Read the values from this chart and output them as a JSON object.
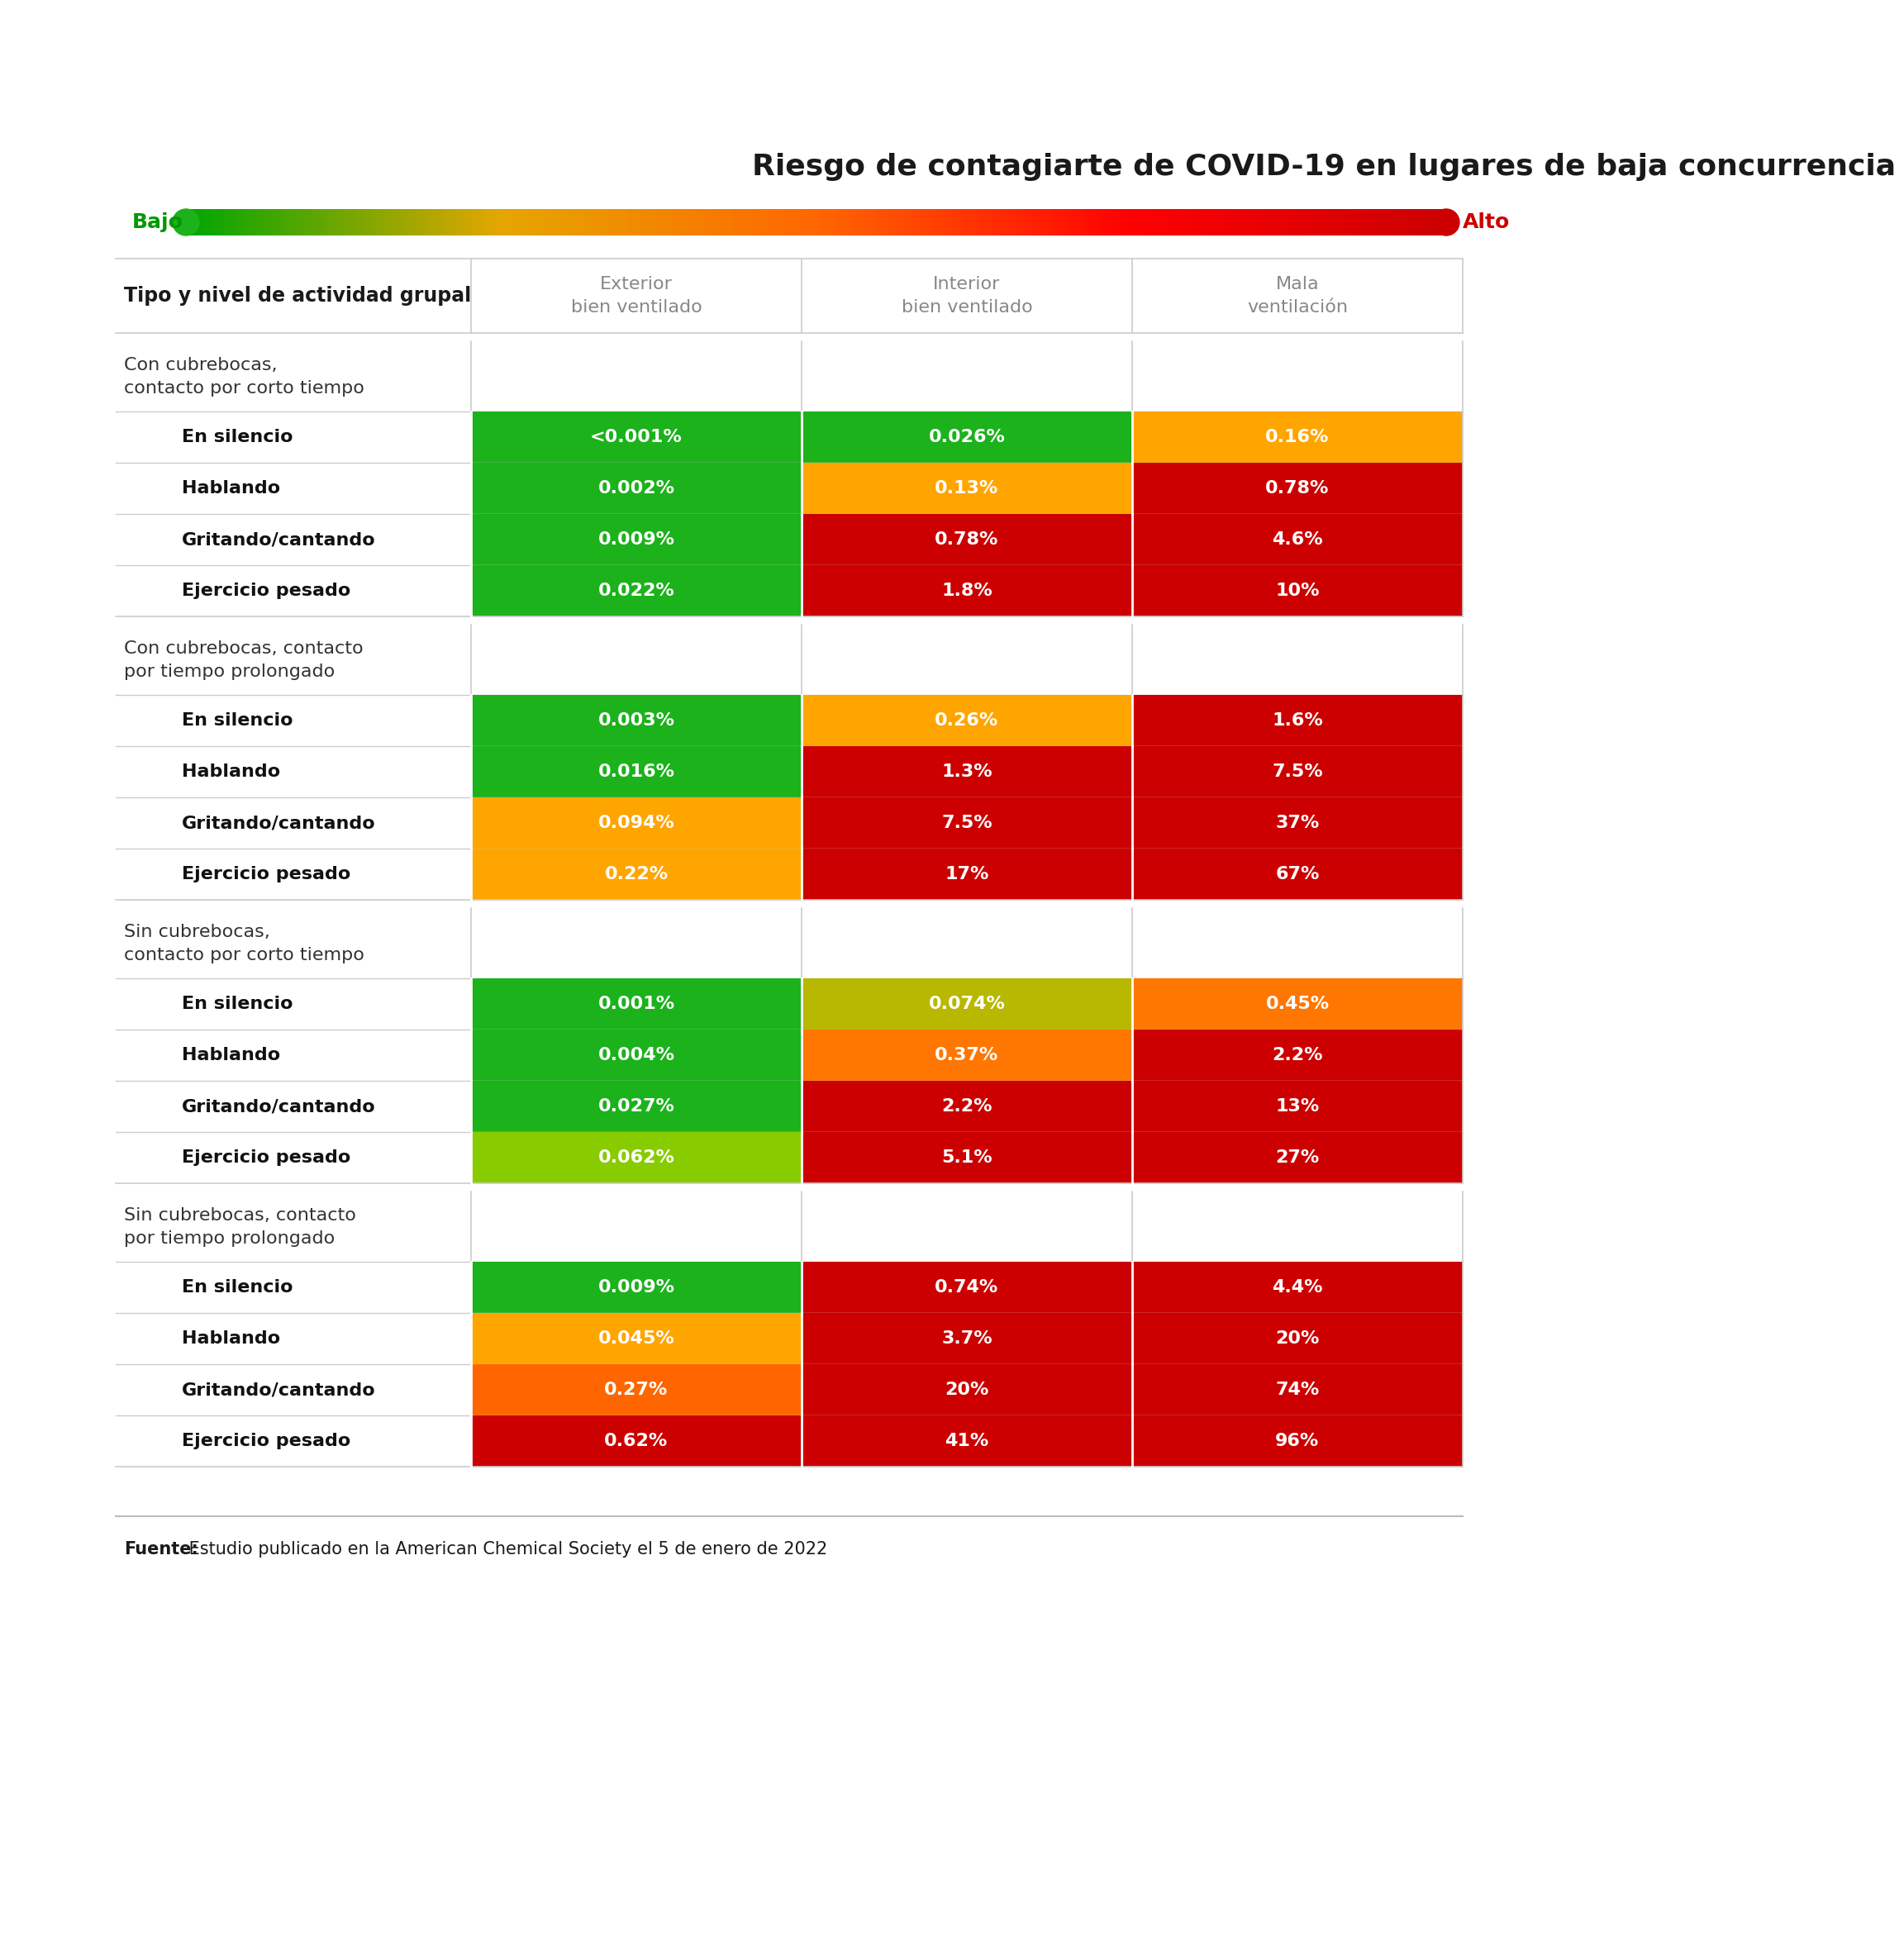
{
  "title": "Riesgo de contagiarte de COVID-19 en lugares de baja concurrencia",
  "gradient_label_low": "Bajo",
  "gradient_label_high": "Alto",
  "col_headers": [
    "Exterior\nbien ventilado",
    "Interior\nbien ventilado",
    "Mala\nventilación"
  ],
  "row_label_header": "Tipo y nivel de actividad grupal",
  "sections": [
    {
      "section_title": "Con cubrebocas,\ncontacto por corto tiempo",
      "rows": [
        {
          "label": "En silencio",
          "values": [
            "<0.001%",
            "0.026%",
            "0.16%"
          ],
          "colors": [
            "#1cb21c",
            "#1cb21c",
            "#ffa500"
          ]
        },
        {
          "label": "Hablando",
          "values": [
            "0.002%",
            "0.13%",
            "0.78%"
          ],
          "colors": [
            "#1cb21c",
            "#ffa500",
            "#cc0000"
          ]
        },
        {
          "label": "Gritando/cantando",
          "values": [
            "0.009%",
            "0.78%",
            "4.6%"
          ],
          "colors": [
            "#1cb21c",
            "#cc0000",
            "#cc0000"
          ]
        },
        {
          "label": "Ejercicio pesado",
          "values": [
            "0.022%",
            "1.8%",
            "10%"
          ],
          "colors": [
            "#1cb21c",
            "#cc0000",
            "#cc0000"
          ]
        }
      ]
    },
    {
      "section_title": "Con cubrebocas, contacto\npor tiempo prolongado",
      "rows": [
        {
          "label": "En silencio",
          "values": [
            "0.003%",
            "0.26%",
            "1.6%"
          ],
          "colors": [
            "#1cb21c",
            "#ffa500",
            "#cc0000"
          ]
        },
        {
          "label": "Hablando",
          "values": [
            "0.016%",
            "1.3%",
            "7.5%"
          ],
          "colors": [
            "#1cb21c",
            "#cc0000",
            "#cc0000"
          ]
        },
        {
          "label": "Gritando/cantando",
          "values": [
            "0.094%",
            "7.5%",
            "37%"
          ],
          "colors": [
            "#ffa500",
            "#cc0000",
            "#cc0000"
          ]
        },
        {
          "label": "Ejercicio pesado",
          "values": [
            "0.22%",
            "17%",
            "67%"
          ],
          "colors": [
            "#ffa500",
            "#cc0000",
            "#cc0000"
          ]
        }
      ]
    },
    {
      "section_title": "Sin cubrebocas,\ncontacto por corto tiempo",
      "rows": [
        {
          "label": "En silencio",
          "values": [
            "0.001%",
            "0.074%",
            "0.45%"
          ],
          "colors": [
            "#1cb21c",
            "#b8b800",
            "#ff7700"
          ]
        },
        {
          "label": "Hablando",
          "values": [
            "0.004%",
            "0.37%",
            "2.2%"
          ],
          "colors": [
            "#1cb21c",
            "#ff7700",
            "#cc0000"
          ]
        },
        {
          "label": "Gritando/cantando",
          "values": [
            "0.027%",
            "2.2%",
            "13%"
          ],
          "colors": [
            "#1cb21c",
            "#cc0000",
            "#cc0000"
          ]
        },
        {
          "label": "Ejercicio pesado",
          "values": [
            "0.062%",
            "5.1%",
            "27%"
          ],
          "colors": [
            "#88cc00",
            "#cc0000",
            "#cc0000"
          ]
        }
      ]
    },
    {
      "section_title": "Sin cubrebocas, contacto\npor tiempo prolongado",
      "rows": [
        {
          "label": "En silencio",
          "values": [
            "0.009%",
            "0.74%",
            "4.4%"
          ],
          "colors": [
            "#1cb21c",
            "#cc0000",
            "#cc0000"
          ]
        },
        {
          "label": "Hablando",
          "values": [
            "0.045%",
            "3.7%",
            "20%"
          ],
          "colors": [
            "#ffa500",
            "#cc0000",
            "#cc0000"
          ]
        },
        {
          "label": "Gritando/cantando",
          "values": [
            "0.27%",
            "20%",
            "74%"
          ],
          "colors": [
            "#ff6600",
            "#cc0000",
            "#cc0000"
          ]
        },
        {
          "label": "Ejercicio pesado",
          "values": [
            "0.62%",
            "41%",
            "96%"
          ],
          "colors": [
            "#cc0000",
            "#cc0000",
            "#cc0000"
          ]
        }
      ]
    }
  ],
  "footer_bold": "Fuente:",
  "footer_rest": " Estudio publicado en la American Chemical Society el 5 de enero de 2022",
  "bg_color": "#ffffff",
  "outer_bg": "#f5f5f5",
  "text_color": "#1a1a1a",
  "header_text_color": "#888888",
  "section_title_color": "#333333",
  "cell_text_color": "#ffffff",
  "row_label_color": "#111111",
  "divider_color": "#cccccc",
  "low_color": "#009900",
  "high_color": "#cc0000"
}
